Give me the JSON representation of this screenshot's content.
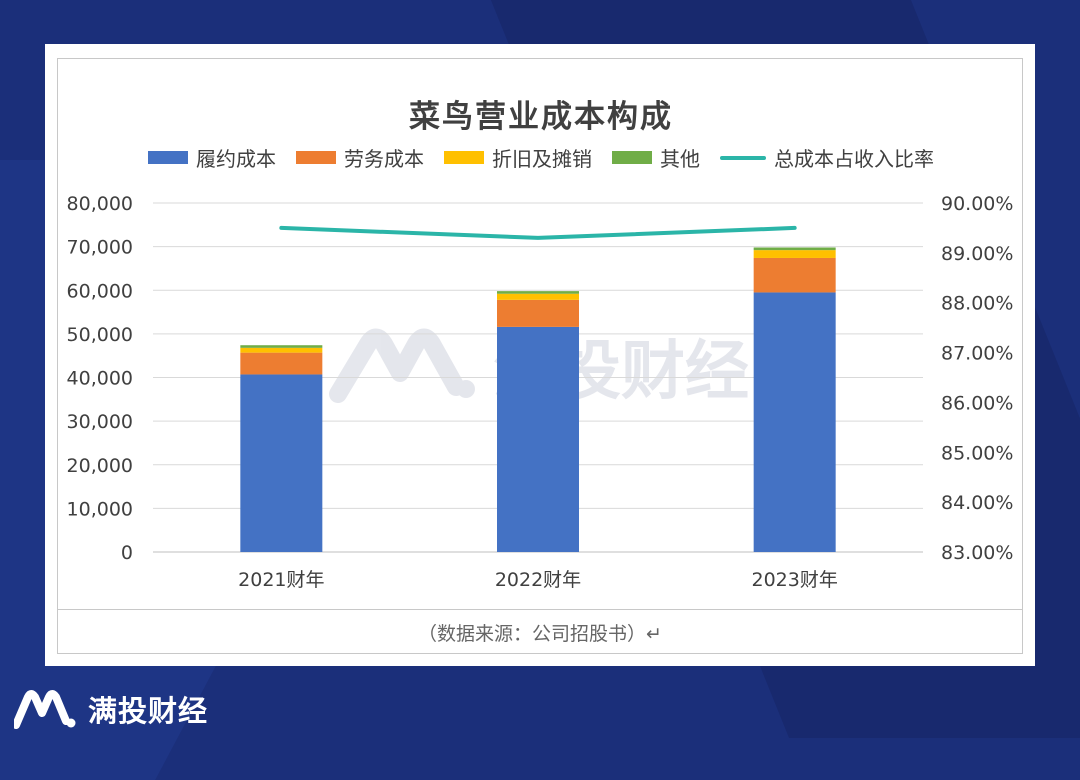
{
  "chart_data": {
    "type": "bar",
    "stacked": true,
    "title": "菜鸟营业成本构成",
    "categories": [
      "2021财年",
      "2022财年",
      "2023财年"
    ],
    "series": [
      {
        "name": "履约成本",
        "color": "#4472c4",
        "values": [
          40700,
          51600,
          59500
        ]
      },
      {
        "name": "劳务成本",
        "color": "#ed7d31",
        "values": [
          5000,
          6200,
          7900
        ]
      },
      {
        "name": "折旧及摊销",
        "color": "#ffc000",
        "values": [
          1100,
          1400,
          1800
        ]
      },
      {
        "name": "其他",
        "color": "#70ad47",
        "values": [
          600,
          600,
          600
        ]
      }
    ],
    "line_series": {
      "name": "总成本占收入比率",
      "color": "#2bb5a8",
      "values": [
        89.5,
        89.3,
        89.5
      ],
      "axis": "right"
    },
    "y_left": {
      "min": 0,
      "max": 80000,
      "ticks": [
        "0",
        "10,000",
        "20,000",
        "30,000",
        "40,000",
        "50,000",
        "60,000",
        "70,000",
        "80,000"
      ]
    },
    "y_right": {
      "min": 83,
      "max": 90,
      "ticks": [
        "83.00%",
        "84.00%",
        "85.00%",
        "86.00%",
        "87.00%",
        "88.00%",
        "89.00%",
        "90.00%"
      ]
    },
    "grid": true,
    "legend_position": "top"
  },
  "source_text": "（数据来源：公司招股书）↵",
  "watermark_text": "满投财经",
  "footer_brand": "满投财经"
}
